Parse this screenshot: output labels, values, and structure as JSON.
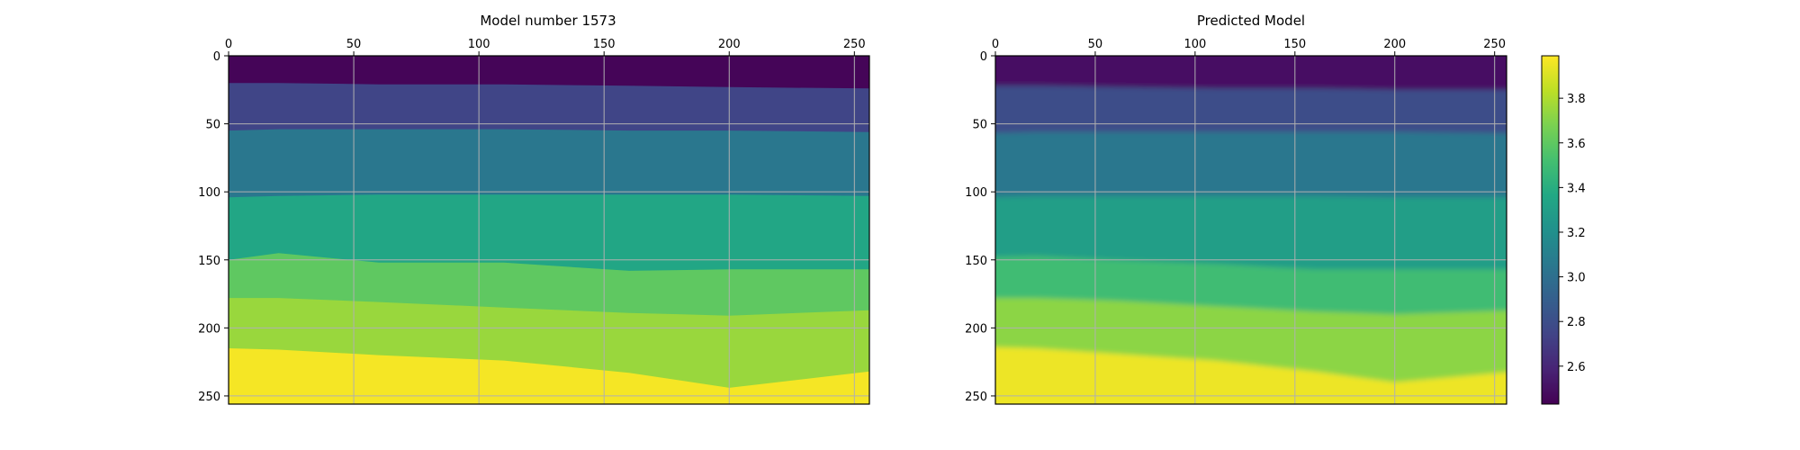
{
  "chart_data": [
    {
      "type": "heatmap",
      "title": "Model number 1573",
      "xlabel": "",
      "ylabel": "",
      "xlim": [
        0,
        256
      ],
      "ylim": [
        256,
        0
      ],
      "x_ticks": [
        "0",
        "50",
        "100",
        "150",
        "200",
        "250"
      ],
      "y_ticks": [
        "0",
        "50",
        "100",
        "150",
        "200",
        "250"
      ],
      "x_axis_position": "top",
      "grid": true,
      "layers": [
        {
          "value": 2.45,
          "top": [
            0,
            0,
            0,
            0,
            0,
            0,
            0
          ]
        },
        {
          "value": 2.75,
          "top": [
            20,
            20,
            21,
            21,
            22,
            23,
            24
          ]
        },
        {
          "value": 3.05,
          "top": [
            55,
            54,
            54,
            54,
            55,
            55,
            56
          ]
        },
        {
          "value": 3.35,
          "top": [
            104,
            103,
            102,
            102,
            102,
            102,
            103
          ]
        },
        {
          "value": 3.6,
          "top": [
            150,
            145,
            152,
            152,
            158,
            157,
            157
          ]
        },
        {
          "value": 3.75,
          "top": [
            178,
            178,
            181,
            185,
            189,
            191,
            187
          ]
        },
        {
          "value": 3.97,
          "top": [
            215,
            216,
            220,
            224,
            233,
            244,
            232
          ]
        }
      ],
      "layer_x": [
        0,
        20,
        60,
        110,
        160,
        200,
        256
      ]
    },
    {
      "type": "heatmap",
      "title": "Predicted Model",
      "xlabel": "",
      "ylabel": "",
      "xlim": [
        0,
        256
      ],
      "ylim": [
        256,
        0
      ],
      "x_ticks": [
        "0",
        "50",
        "100",
        "150",
        "200",
        "250"
      ],
      "y_ticks": [
        "0",
        "50",
        "100",
        "150",
        "200",
        "250"
      ],
      "x_axis_position": "top",
      "grid": true,
      "layers": [
        {
          "value": 2.5,
          "top": [
            0,
            0,
            0,
            0,
            0,
            0,
            0
          ]
        },
        {
          "value": 2.8,
          "top": [
            22,
            22,
            23,
            24,
            24,
            25,
            25
          ]
        },
        {
          "value": 3.05,
          "top": [
            57,
            56,
            56,
            56,
            56,
            56,
            57
          ]
        },
        {
          "value": 3.3,
          "top": [
            104,
            103,
            103,
            103,
            103,
            104,
            104
          ]
        },
        {
          "value": 3.5,
          "top": [
            148,
            147,
            150,
            153,
            157,
            157,
            157
          ]
        },
        {
          "value": 3.72,
          "top": [
            178,
            178,
            180,
            184,
            188,
            190,
            187
          ]
        },
        {
          "value": 3.95,
          "top": [
            214,
            215,
            219,
            224,
            232,
            240,
            232
          ]
        }
      ],
      "layer_x": [
        0,
        20,
        60,
        110,
        160,
        200,
        256
      ]
    }
  ],
  "colorbar": {
    "min": 2.43,
    "max": 3.99,
    "tick_values": [
      2.6,
      2.8,
      3.0,
      3.2,
      3.4,
      3.6,
      3.8
    ],
    "tick_labels": [
      "2.6",
      "2.8",
      "3.0",
      "3.2",
      "3.4",
      "3.6",
      "3.8"
    ],
    "colormap": "viridis"
  }
}
